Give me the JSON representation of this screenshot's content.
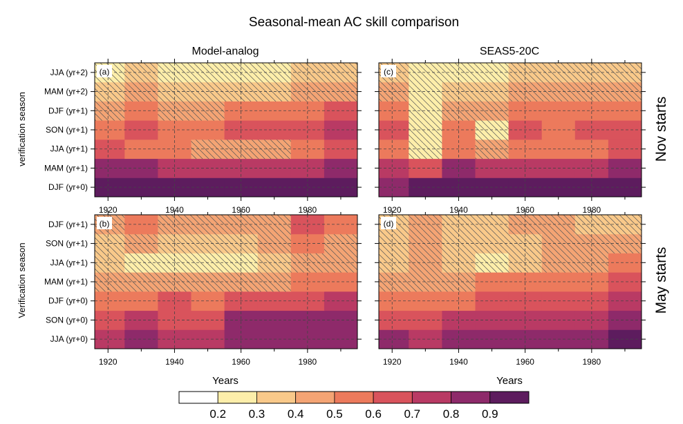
{
  "figure": {
    "title": "Seasonal-mean AC skill comparison",
    "column_titles": [
      "Model-analog",
      "SEAS5-20C"
    ],
    "row_titles": [
      "Nov starts",
      "May starts"
    ],
    "xlabel": "Years",
    "ylabels": [
      "verification season",
      "Verification season"
    ]
  },
  "colors": {
    "levels": [
      "#ffffff",
      "#fdeeaa",
      "#f9c98a",
      "#f4a474",
      "#ec7a5c",
      "#d9535c",
      "#b93a64",
      "#8e2a6a",
      "#5d1c5e"
    ],
    "hatch": "#555555",
    "grid": "#444444"
  },
  "chart_data": [
    {
      "type": "heatmap",
      "panel": "(a)",
      "column": "Model-analog",
      "row": "Nov starts",
      "xlabel": "",
      "ylabel": "verification season",
      "xlim": [
        1916,
        1995
      ],
      "xticks": [
        1920,
        1940,
        1960,
        1980
      ],
      "y_categories": [
        "DJF (yr+0)",
        "MAM (yr+1)",
        "JJA (yr+1)",
        "SON (yr+1)",
        "DJF (yr+1)",
        "MAM (yr+2)",
        "JJA (yr+2)"
      ],
      "x": [
        1920,
        1930,
        1940,
        1950,
        1960,
        1970,
        1980,
        1990
      ],
      "z": [
        [
          0.9,
          0.9,
          0.9,
          0.9,
          0.9,
          0.9,
          0.9,
          0.9
        ],
        [
          0.8,
          0.8,
          0.7,
          0.7,
          0.7,
          0.7,
          0.7,
          0.8
        ],
        [
          0.6,
          0.5,
          0.5,
          0.4,
          0.4,
          0.4,
          0.5,
          0.6
        ],
        [
          0.5,
          0.6,
          0.5,
          0.5,
          0.6,
          0.6,
          0.6,
          0.7
        ],
        [
          0.4,
          0.5,
          0.4,
          0.4,
          0.5,
          0.5,
          0.5,
          0.6
        ],
        [
          0.3,
          0.4,
          0.3,
          0.3,
          0.3,
          0.3,
          0.4,
          0.4
        ],
        [
          0.2,
          0.3,
          0.2,
          0.2,
          0.2,
          0.2,
          0.3,
          0.3
        ]
      ],
      "hatched_region": "below 0.5 contour, upper part of panel"
    },
    {
      "type": "heatmap",
      "panel": "(c)",
      "column": "SEAS5-20C",
      "row": "Nov starts",
      "xlabel": "",
      "ylabel": "",
      "xlim": [
        1916,
        1995
      ],
      "xticks": [
        1920,
        1940,
        1960,
        1980
      ],
      "y_categories": [
        "DJF (yr+0)",
        "MAM (yr+1)",
        "JJA (yr+1)",
        "SON (yr+1)",
        "DJF (yr+1)",
        "MAM (yr+2)",
        "JJA (yr+2)"
      ],
      "x": [
        1920,
        1930,
        1940,
        1950,
        1960,
        1970,
        1980,
        1990
      ],
      "z": [
        [
          0.8,
          0.9,
          0.9,
          0.9,
          0.9,
          0.9,
          0.9,
          0.9
        ],
        [
          0.7,
          0.6,
          0.8,
          0.7,
          0.7,
          0.7,
          0.7,
          0.8
        ],
        [
          0.5,
          0.2,
          0.5,
          0.4,
          0.5,
          0.5,
          0.5,
          0.6
        ],
        [
          0.6,
          0.2,
          0.5,
          0.2,
          0.6,
          0.5,
          0.6,
          0.6
        ],
        [
          0.5,
          0.2,
          0.4,
          0.4,
          0.5,
          0.5,
          0.5,
          0.5
        ],
        [
          0.4,
          0.2,
          0.3,
          0.3,
          0.4,
          0.4,
          0.4,
          0.4
        ],
        [
          0.3,
          0.2,
          0.2,
          0.2,
          0.3,
          0.3,
          0.3,
          0.3
        ]
      ],
      "hatched_region": "below 0.5 contour, upper part of panel and 1930s column"
    },
    {
      "type": "heatmap",
      "panel": "(b)",
      "column": "Model-analog",
      "row": "May starts",
      "xlabel": "Years",
      "ylabel": "Verification season",
      "xlim": [
        1916,
        1995
      ],
      "xticks": [
        1920,
        1940,
        1960,
        1980
      ],
      "y_categories": [
        "JJA (yr+0)",
        "SON (yr+0)",
        "DJF (yr+0)",
        "MAM (yr+1)",
        "JJA (yr+1)",
        "SON (yr+1)",
        "DJF (yr+1)"
      ],
      "x": [
        1920,
        1930,
        1940,
        1950,
        1960,
        1970,
        1980,
        1990
      ],
      "z": [
        [
          0.7,
          0.8,
          0.7,
          0.7,
          0.8,
          0.8,
          0.8,
          0.8
        ],
        [
          0.6,
          0.7,
          0.6,
          0.6,
          0.8,
          0.8,
          0.8,
          0.8
        ],
        [
          0.5,
          0.5,
          0.6,
          0.5,
          0.6,
          0.6,
          0.6,
          0.7
        ],
        [
          0.4,
          0.4,
          0.4,
          0.4,
          0.4,
          0.4,
          0.5,
          0.5
        ],
        [
          0.3,
          0.2,
          0.2,
          0.2,
          0.2,
          0.3,
          0.4,
          0.4
        ],
        [
          0.3,
          0.4,
          0.3,
          0.3,
          0.3,
          0.4,
          0.5,
          0.4
        ],
        [
          0.4,
          0.5,
          0.4,
          0.4,
          0.4,
          0.4,
          0.6,
          0.5
        ]
      ],
      "hatched_region": "below 0.5 contour, upper part of panel"
    },
    {
      "type": "heatmap",
      "panel": "(d)",
      "column": "SEAS5-20C",
      "row": "May starts",
      "xlabel": "Years",
      "ylabel": "",
      "xlim": [
        1916,
        1995
      ],
      "xticks": [
        1920,
        1940,
        1960,
        1980
      ],
      "y_categories": [
        "JJA (yr+0)",
        "SON (yr+0)",
        "DJF (yr+0)",
        "MAM (yr+1)",
        "JJA (yr+1)",
        "SON (yr+1)",
        "DJF (yr+1)"
      ],
      "x": [
        1920,
        1930,
        1940,
        1950,
        1960,
        1970,
        1980,
        1990
      ],
      "z": [
        [
          0.8,
          0.7,
          0.8,
          0.8,
          0.8,
          0.8,
          0.8,
          0.9
        ],
        [
          0.6,
          0.6,
          0.7,
          0.7,
          0.7,
          0.7,
          0.7,
          0.8
        ],
        [
          0.5,
          0.5,
          0.5,
          0.6,
          0.6,
          0.6,
          0.6,
          0.7
        ],
        [
          0.4,
          0.4,
          0.4,
          0.5,
          0.5,
          0.5,
          0.5,
          0.6
        ],
        [
          0.3,
          0.4,
          0.3,
          0.2,
          0.3,
          0.4,
          0.4,
          0.5
        ],
        [
          0.3,
          0.4,
          0.3,
          0.3,
          0.3,
          0.4,
          0.4,
          0.4
        ],
        [
          0.3,
          0.4,
          0.3,
          0.3,
          0.4,
          0.4,
          0.3,
          0.3
        ]
      ],
      "hatched_region": "below 0.5 contour, upper part of panel"
    }
  ],
  "colorbar": {
    "tick_labels": [
      "0.2",
      "0.3",
      "0.4",
      "0.5",
      "0.6",
      "0.7",
      "0.8",
      "0.9"
    ],
    "orientation": "horizontal",
    "placement": "bottom"
  }
}
